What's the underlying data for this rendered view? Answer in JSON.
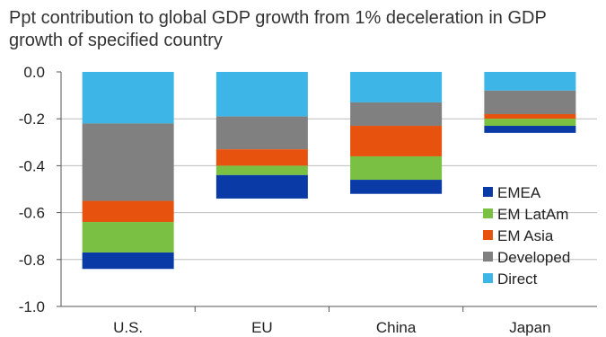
{
  "chart_data": {
    "type": "bar",
    "stacked": true,
    "title": "Ppt contribution to global GDP growth from 1% deceleration in GDP growth of specified country",
    "xlabel": "",
    "ylabel": "",
    "categories": [
      "U.S.",
      "EU",
      "China",
      "Japan"
    ],
    "ylim": [
      -1.0,
      0.0
    ],
    "yticks": [
      "0.0",
      "-0.2",
      "-0.4",
      "-0.6",
      "-0.8",
      "-1.0"
    ],
    "ytick_values": [
      0.0,
      -0.2,
      -0.4,
      -0.6,
      -0.8,
      -1.0
    ],
    "grid": true,
    "legend_position": "bottom-right",
    "series": [
      {
        "name": "Direct",
        "color": "#3db5e6",
        "values": [
          -0.22,
          -0.19,
          -0.13,
          -0.08
        ]
      },
      {
        "name": "Developed",
        "color": "#808080",
        "values": [
          -0.33,
          -0.14,
          -0.1,
          -0.1
        ]
      },
      {
        "name": "EM Asia",
        "color": "#e8520f",
        "values": [
          -0.09,
          -0.07,
          -0.13,
          -0.02
        ]
      },
      {
        "name": "EM LatAm",
        "color": "#7ac143",
        "values": [
          -0.13,
          -0.04,
          -0.1,
          -0.03
        ]
      },
      {
        "name": "EMEA",
        "color": "#0a3aa6",
        "values": [
          -0.07,
          -0.1,
          -0.06,
          -0.03
        ]
      }
    ],
    "legend_order": [
      "EMEA",
      "EM LatAm",
      "EM Asia",
      "Developed",
      "Direct"
    ]
  }
}
